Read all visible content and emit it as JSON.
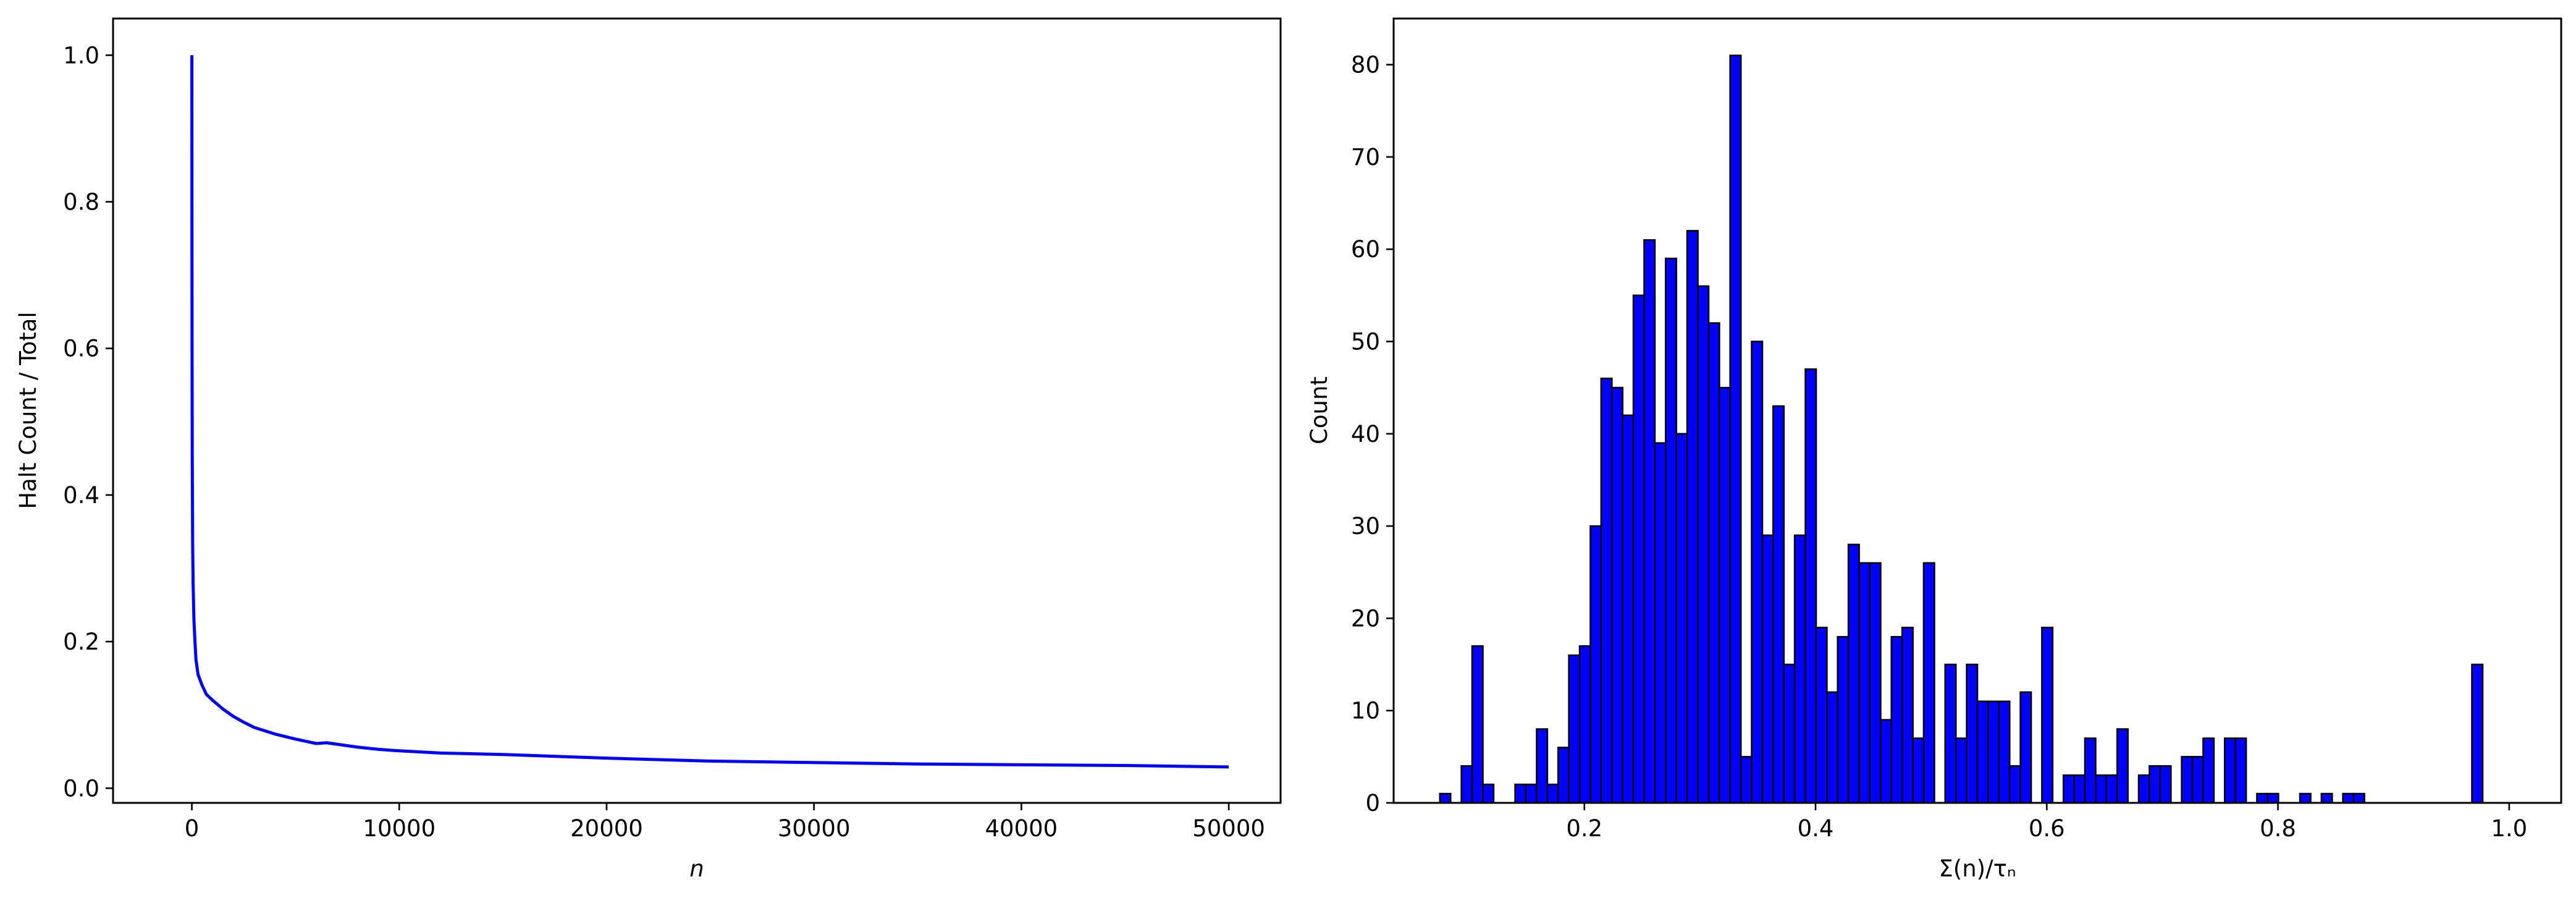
{
  "figure": {
    "background": "#ffffff"
  },
  "chart_data": [
    {
      "type": "line",
      "title": "",
      "xlabel": "n",
      "ylabel": "Halt Count / Total",
      "xlim": [
        -3800,
        52500
      ],
      "ylim": [
        -0.02,
        1.05
      ],
      "xticks": [
        0,
        10000,
        20000,
        30000,
        40000,
        50000
      ],
      "xtick_labels": [
        "0",
        "10000",
        "20000",
        "30000",
        "40000",
        "50000"
      ],
      "yticks": [
        0.0,
        0.2,
        0.4,
        0.6,
        0.8,
        1.0
      ],
      "ytick_labels": [
        "0.0",
        "0.2",
        "0.4",
        "0.6",
        "0.8",
        "1.0"
      ],
      "grid": false,
      "legend": "none",
      "color": "#0000ff",
      "series": [
        {
          "x": [
            1,
            5,
            10,
            20,
            40,
            60,
            100,
            150,
            200,
            300,
            500,
            700,
            1000,
            1500,
            2000,
            2500,
            3000,
            4000,
            5000,
            6000,
            6500,
            7000,
            8000,
            9000,
            10000,
            12000,
            15000,
            20000,
            25000,
            30000,
            35000,
            40000,
            45000,
            50000
          ],
          "y": [
            1.0,
            0.75,
            0.6,
            0.45,
            0.33,
            0.28,
            0.23,
            0.2,
            0.175,
            0.155,
            0.14,
            0.128,
            0.12,
            0.108,
            0.098,
            0.09,
            0.083,
            0.074,
            0.067,
            0.061,
            0.062,
            0.06,
            0.056,
            0.053,
            0.051,
            0.048,
            0.046,
            0.041,
            0.037,
            0.035,
            0.033,
            0.032,
            0.031,
            0.029
          ]
        }
      ]
    },
    {
      "type": "bar",
      "title": "",
      "xlabel": "Σ(n)/τₙ",
      "ylabel": "Count",
      "xlim": [
        0.035,
        1.045
      ],
      "ylim": [
        0,
        85
      ],
      "xticks": [
        0.2,
        0.4,
        0.6,
        0.8,
        1.0
      ],
      "xtick_labels": [
        "0.2",
        "0.4",
        "0.6",
        "0.8",
        "1.0"
      ],
      "yticks": [
        0,
        10,
        20,
        30,
        40,
        50,
        60,
        70,
        80
      ],
      "ytick_labels": [
        "0",
        "10",
        "20",
        "30",
        "40",
        "50",
        "60",
        "70",
        "80"
      ],
      "grid": false,
      "legend": "none",
      "color": "#0000ff",
      "edgecolor": "#000000",
      "bin_start": 0.075,
      "bin_width": 0.0093,
      "values": [
        1,
        0,
        4,
        17,
        2,
        0,
        0,
        2,
        2,
        8,
        2,
        6,
        16,
        17,
        30,
        46,
        45,
        42,
        55,
        61,
        39,
        59,
        40,
        62,
        56,
        52,
        45,
        81,
        5,
        50,
        29,
        43,
        15,
        29,
        47,
        19,
        12,
        18,
        28,
        26,
        26,
        9,
        18,
        19,
        7,
        26,
        0,
        15,
        7,
        15,
        11,
        11,
        11,
        4,
        12,
        0,
        19,
        0,
        3,
        3,
        7,
        3,
        3,
        8,
        0,
        3,
        4,
        4,
        0,
        5,
        5,
        7,
        0,
        7,
        7,
        0,
        1,
        1,
        0,
        0,
        1,
        0,
        1,
        0,
        1,
        1,
        0,
        0,
        0,
        0,
        0,
        0,
        0,
        0,
        0,
        0,
        15
      ]
    }
  ]
}
